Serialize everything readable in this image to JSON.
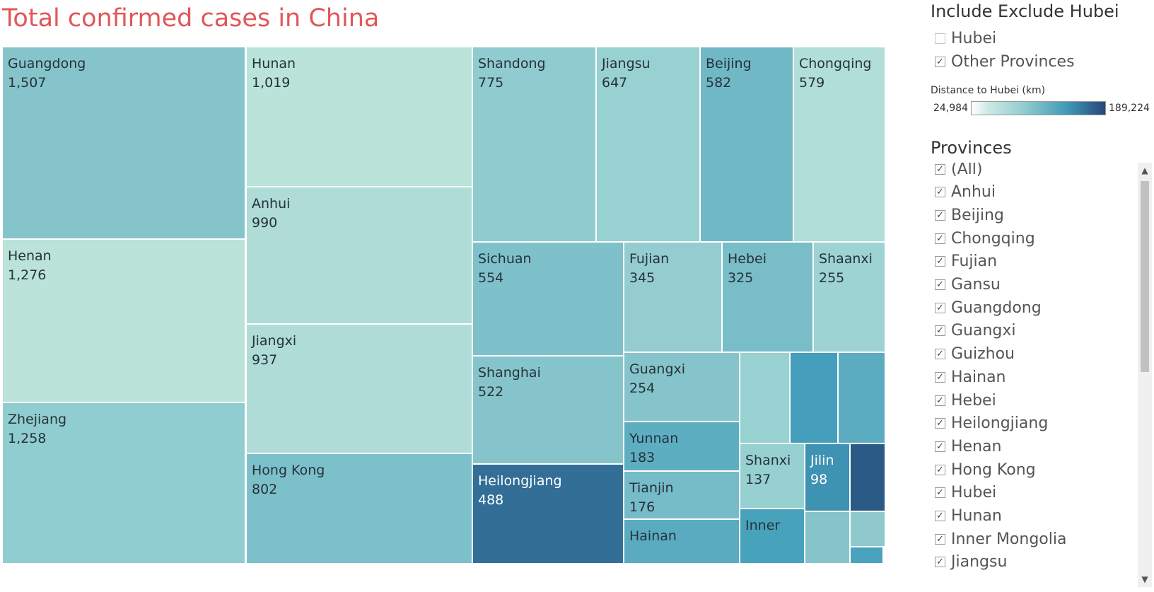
{
  "title": "Total confirmed cases in China",
  "treemap": {
    "tiles": [
      {
        "name": "Guangdong",
        "value": "1,507",
        "color": "#86c4cb"
      },
      {
        "name": "Henan",
        "value": "1,276",
        "color": "#bbe3da"
      },
      {
        "name": "Zhejiang",
        "value": "1,258",
        "color": "#90cdd0"
      },
      {
        "name": "Hunan",
        "value": "1,019",
        "color": "#bae3da"
      },
      {
        "name": "Anhui",
        "value": "990",
        "color": "#afdcd7"
      },
      {
        "name": "Jiangxi",
        "value": "937",
        "color": "#afdcd7"
      },
      {
        "name": "Hong Kong",
        "value": "802",
        "color": "#7cc0ca"
      },
      {
        "name": "Shandong",
        "value": "775",
        "color": "#90cbcf"
      },
      {
        "name": "Jiangsu",
        "value": "647",
        "color": "#98d1d1"
      },
      {
        "name": "Beijing",
        "value": "582",
        "color": "#71b8c6"
      },
      {
        "name": "Chongqing",
        "value": "579",
        "color": "#b1dfd8"
      },
      {
        "name": "Sichuan",
        "value": "554",
        "color": "#7ec1cb"
      },
      {
        "name": "Fujian",
        "value": "345",
        "color": "#94ccd0"
      },
      {
        "name": "Hebei",
        "value": "325",
        "color": "#79bdc9"
      },
      {
        "name": "Shaanxi",
        "value": "255",
        "color": "#9dd3d3"
      },
      {
        "name": "Shanghai",
        "value": "522",
        "color": "#86c4cb"
      },
      {
        "name": "Guangxi",
        "value": "254",
        "color": "#86c4cb"
      },
      {
        "name": "Yunnan",
        "value": "183",
        "color": "#5eaec2"
      },
      {
        "name": "Tianjin",
        "value": "176",
        "color": "#76bbc8"
      },
      {
        "name": "Hainan",
        "value": "",
        "color": "#5aabbf"
      },
      {
        "name": "Heilongjiang",
        "value": "488",
        "color": "#336e97"
      },
      {
        "name": "Shanxi",
        "value": "137",
        "color": "#97d0d1"
      },
      {
        "name": "Jilin",
        "value": "98",
        "color": "#3e92b2"
      },
      {
        "name": "Inner",
        "value": "",
        "color": "#47a2bb"
      },
      {
        "name": "",
        "value": "",
        "color": "#98d1d1"
      },
      {
        "name": "",
        "value": "",
        "color": "#459ebb"
      },
      {
        "name": "",
        "value": "",
        "color": "#5cacc1"
      },
      {
        "name": "",
        "value": "",
        "color": "#2c5a87"
      },
      {
        "name": "",
        "value": "",
        "color": "#86c4cb"
      },
      {
        "name": "",
        "value": "",
        "color": "#8fc9ce"
      },
      {
        "name": "",
        "value": "",
        "color": "#4aa3bc"
      }
    ]
  },
  "include_filter": {
    "title": "Include Exclude Hubei",
    "options": [
      {
        "label": "Hubei",
        "checked": false
      },
      {
        "label": "Other Provinces",
        "checked": true
      }
    ]
  },
  "legend": {
    "title": "Distance to Hubei (km)",
    "min": "24,984",
    "max": "189,224",
    "colors": [
      "#ffffff",
      "#8fcbd0",
      "#26467a"
    ]
  },
  "provinces_filter": {
    "title": "Provinces",
    "options": [
      {
        "label": "(All)",
        "checked": true
      },
      {
        "label": "Anhui",
        "checked": true
      },
      {
        "label": "Beijing",
        "checked": true
      },
      {
        "label": "Chongqing",
        "checked": true
      },
      {
        "label": "Fujian",
        "checked": true
      },
      {
        "label": "Gansu",
        "checked": true
      },
      {
        "label": "Guangdong",
        "checked": true
      },
      {
        "label": "Guangxi",
        "checked": true
      },
      {
        "label": "Guizhou",
        "checked": true
      },
      {
        "label": "Hainan",
        "checked": true
      },
      {
        "label": "Hebei",
        "checked": true
      },
      {
        "label": "Heilongjiang",
        "checked": true
      },
      {
        "label": "Henan",
        "checked": true
      },
      {
        "label": "Hong Kong",
        "checked": true
      },
      {
        "label": "Hubei",
        "checked": true
      },
      {
        "label": "Hunan",
        "checked": true
      },
      {
        "label": "Inner Mongolia",
        "checked": true
      },
      {
        "label": "Jiangsu",
        "checked": true
      }
    ]
  }
}
